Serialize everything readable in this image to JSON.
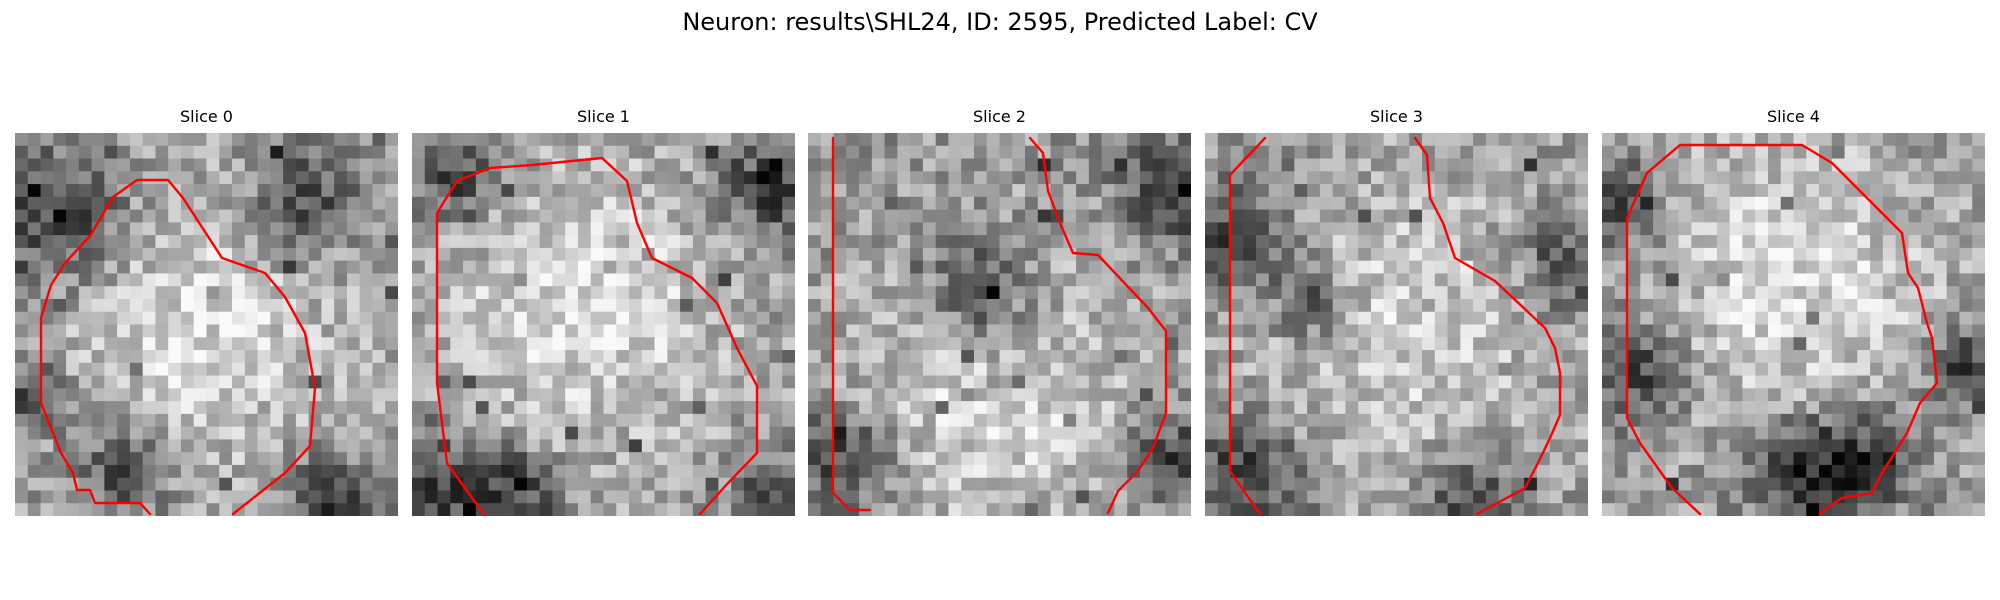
{
  "figure": {
    "title": "Neuron: results\\SHL24, ID: 2595, Predicted Label: CV"
  },
  "panels": [
    {
      "title": "Slice 0",
      "colors": {
        "pixels": "#808080",
        "contour": "#ff0000"
      }
    },
    {
      "title": "Slice 1",
      "colors": {
        "pixels": "#808080",
        "contour": "#ff0000"
      }
    },
    {
      "title": "Slice 2",
      "colors": {
        "pixels": "#808080",
        "contour": "#ff0000"
      }
    },
    {
      "title": "Slice 3",
      "colors": {
        "pixels": "#808080",
        "contour": "#ff0000"
      }
    },
    {
      "title": "Slice 4",
      "colors": {
        "pixels": "#808080",
        "contour": "#ff0000"
      }
    }
  ]
}
